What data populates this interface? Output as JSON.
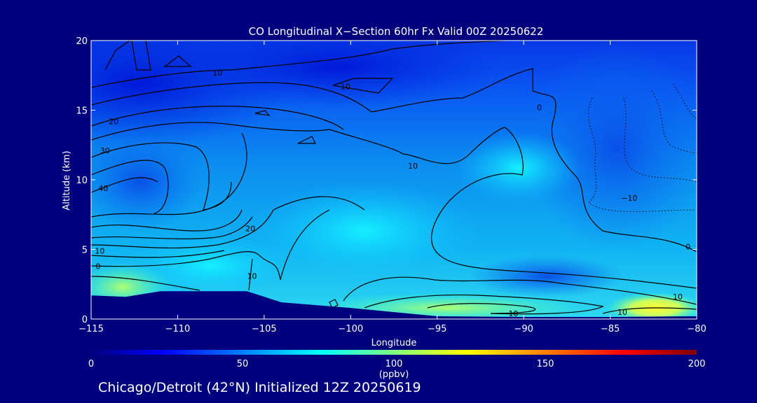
{
  "chart_data": {
    "type": "heatmap",
    "title": "CO Longitudinal X−Section 60hr  Fx Valid 00Z 20250622",
    "xlabel": "Longitude",
    "ylabel": "Altitude (km)",
    "xlim": [
      -115,
      -80
    ],
    "ylim": [
      0,
      20
    ],
    "x_ticks": [
      "−115",
      "−110",
      "−105",
      "−100",
      "−95",
      "−90",
      "−85",
      "−80"
    ],
    "y_ticks": [
      "0",
      "5",
      "10",
      "15",
      "20"
    ],
    "colorbar": {
      "label": "(ppbv)",
      "ticks": [
        "0",
        "50",
        "100",
        "150",
        "200"
      ],
      "range": [
        0,
        200
      ],
      "colors": [
        "#00007f",
        "#0000ff",
        "#0080ff",
        "#00ffff",
        "#80ff80",
        "#ffff00",
        "#ff8000",
        "#ff0000",
        "#7f0000"
      ]
    },
    "terrain": [
      {
        "lon": -115,
        "alt": 1.7
      },
      {
        "lon": -113,
        "alt": 1.6
      },
      {
        "lon": -111,
        "alt": 2.0
      },
      {
        "lon": -106,
        "alt": 2.0
      },
      {
        "lon": -104,
        "alt": 1.2
      },
      {
        "lon": -100,
        "alt": 0.8
      },
      {
        "lon": -95,
        "alt": 0.2
      },
      {
        "lon": -90,
        "alt": 0.15
      },
      {
        "lon": -85,
        "alt": 0.15
      },
      {
        "lon": -80,
        "alt": 0.2
      }
    ],
    "contour_labels": [
      {
        "text": "10",
        "lon": -107.7,
        "alt": 17.5
      },
      {
        "text": "10",
        "lon": -100.3,
        "alt": 16.5
      },
      {
        "text": "0",
        "lon": -89.1,
        "alt": 15.0
      },
      {
        "text": "20",
        "lon": -113.7,
        "alt": 14.0
      },
      {
        "text": "30",
        "lon": -114.2,
        "alt": 11.9
      },
      {
        "text": "10",
        "lon": -96.4,
        "alt": 10.8
      },
      {
        "text": "40",
        "lon": -114.3,
        "alt": 9.2
      },
      {
        "text": "−10",
        "lon": -83.9,
        "alt": 8.5
      },
      {
        "text": "20",
        "lon": -105.8,
        "alt": 6.3
      },
      {
        "text": "0",
        "lon": -80.5,
        "alt": 5.0
      },
      {
        "text": "10",
        "lon": -114.5,
        "alt": 4.7
      },
      {
        "text": "0",
        "lon": -114.6,
        "alt": 3.6
      },
      {
        "text": "10",
        "lon": -105.7,
        "alt": 2.9
      },
      {
        "text": "10",
        "lon": -81.1,
        "alt": 1.4
      },
      {
        "text": "10",
        "lon": -90.6,
        "alt": 0.2
      },
      {
        "text": "10",
        "lon": -84.3,
        "alt": 0.3
      }
    ]
  },
  "footer": "Chicago/Detroit (42°N) Initialized 12Z 20250619"
}
